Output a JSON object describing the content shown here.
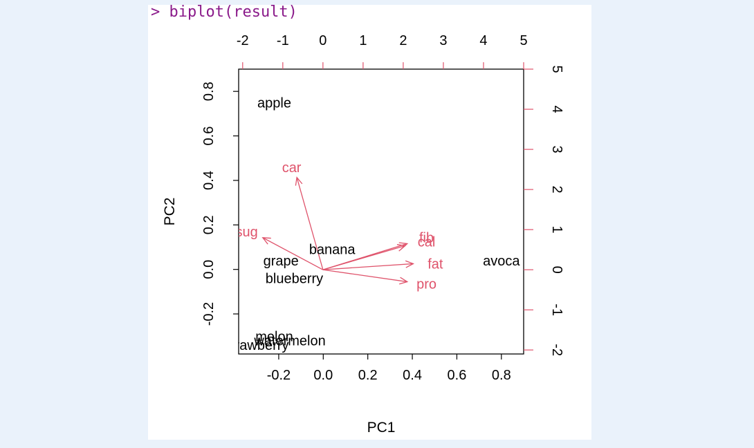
{
  "console": {
    "command_line": "> biplot(result)"
  },
  "colors": {
    "points": "#000000",
    "arrows": "#df536b",
    "console_text": "#8a1a8a",
    "panel_bg": "#ffffff",
    "window_bg": "#eaf2fb"
  },
  "chart_data": {
    "type": "scatter",
    "title": "",
    "xlabel": "PC1",
    "ylabel": "PC2",
    "xlim": [
      -0.38,
      0.9
    ],
    "ylim": [
      -0.38,
      0.9
    ],
    "x_ticks": [
      -0.2,
      0.0,
      0.2,
      0.4,
      0.6,
      0.8
    ],
    "x_tick_labels": [
      "-0.2",
      "0.0",
      "0.2",
      "0.4",
      "0.6",
      "0.8"
    ],
    "y_ticks": [
      -0.2,
      0.0,
      0.2,
      0.4,
      0.6,
      0.8
    ],
    "y_tick_labels": [
      "-0.2",
      "0.0",
      "0.2",
      "0.4",
      "0.6",
      "0.8"
    ],
    "secondary_x_ticks": [
      -2,
      -1,
      0,
      1,
      2,
      3,
      4,
      5
    ],
    "secondary_x_tick_labels": [
      "-2",
      "-1",
      "0",
      "1",
      "2",
      "3",
      "4",
      "5"
    ],
    "secondary_y_ticks": [
      -2,
      -1,
      0,
      1,
      2,
      3,
      4,
      5
    ],
    "secondary_y_tick_labels": [
      "-2",
      "-1",
      "0",
      "1",
      "2",
      "3",
      "4",
      "5"
    ],
    "secondary_lim": [
      -2.1,
      5.0
    ],
    "points": [
      {
        "label": "apple",
        "x": -0.22,
        "y": 0.75
      },
      {
        "label": "banana",
        "x": 0.04,
        "y": 0.09
      },
      {
        "label": "grape",
        "x": -0.19,
        "y": 0.04
      },
      {
        "label": "blueberry",
        "x": -0.13,
        "y": -0.04
      },
      {
        "label": "avoca",
        "x": 0.8,
        "y": 0.04
      },
      {
        "label": "melon",
        "x": -0.22,
        "y": -0.3
      },
      {
        "label": "watermelon",
        "x": -0.15,
        "y": -0.32
      },
      {
        "label": "strawberry",
        "x": -0.3,
        "y": -0.34
      }
    ],
    "loadings": [
      {
        "label": "car",
        "x": -0.65,
        "y": 2.3
      },
      {
        "label": "sug",
        "x": -1.5,
        "y": 0.8
      },
      {
        "label": "fib",
        "x": 2.1,
        "y": 0.65
      },
      {
        "label": "cal",
        "x": 2.05,
        "y": 0.6
      },
      {
        "label": "fat",
        "x": 2.25,
        "y": 0.15
      },
      {
        "label": "pro",
        "x": 2.1,
        "y": -0.3
      }
    ],
    "loading_labels": [
      {
        "label": "car",
        "x": -0.78,
        "y": 2.55
      },
      {
        "label": "sug",
        "x": -1.9,
        "y": 0.95
      },
      {
        "label": "fib",
        "x": 2.58,
        "y": 0.8
      },
      {
        "label": "cal",
        "x": 2.58,
        "y": 0.7
      },
      {
        "label": "fat",
        "x": 2.8,
        "y": 0.15
      },
      {
        "label": "pro",
        "x": 2.58,
        "y": -0.35
      }
    ]
  }
}
